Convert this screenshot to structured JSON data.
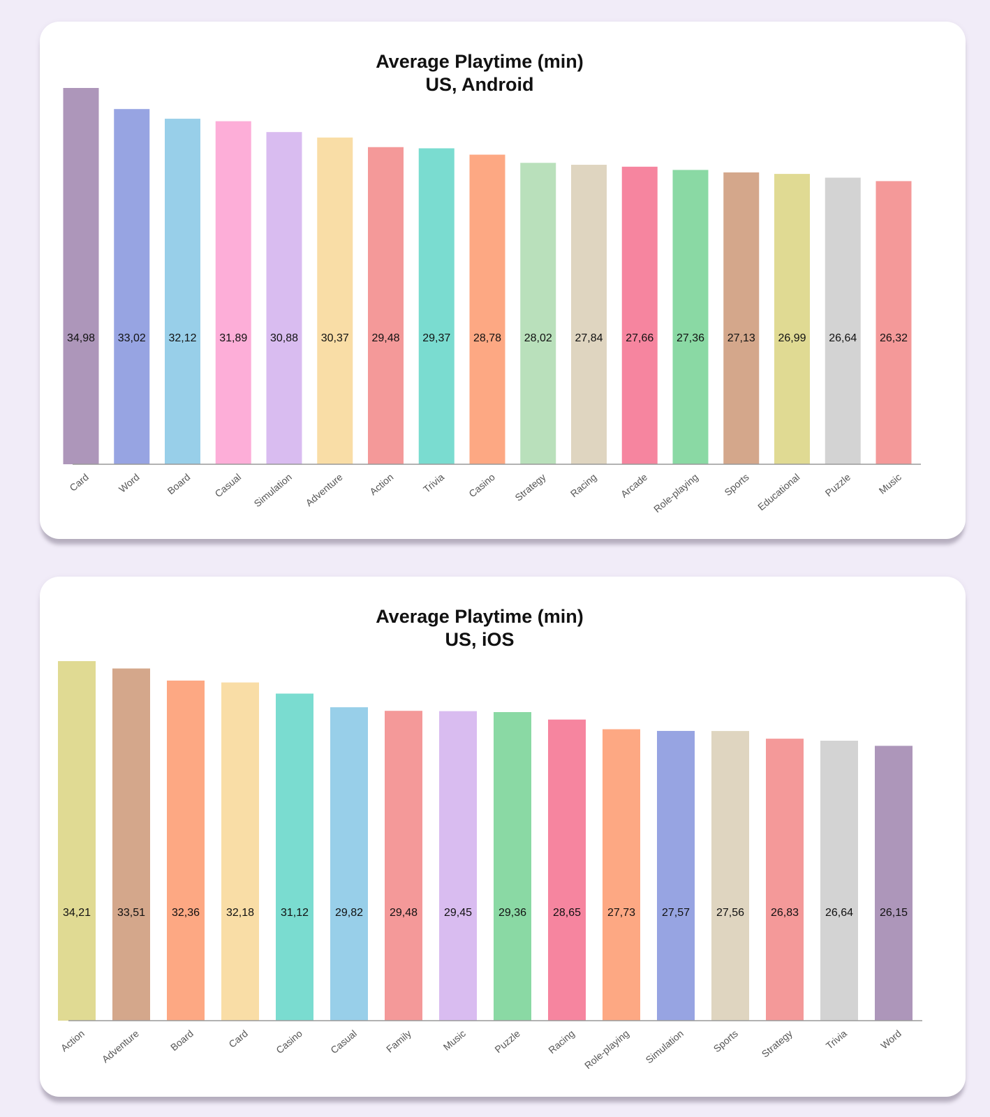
{
  "charts": [
    {
      "id": "android",
      "chart_data": {
        "type": "bar",
        "title": "Average Playtime (min)",
        "subtitle": "US, Android",
        "xlabel": "",
        "ylabel": "",
        "ylim": [
          0,
          34.98
        ],
        "categories": [
          "Card",
          "Word",
          "Board",
          "Casual",
          "Simulation",
          "Adventure",
          "Action",
          "Trivia",
          "Casino",
          "Strategy",
          "Racing",
          "Arcade",
          "Role-playing",
          "Sports",
          "Educational",
          "Puzzle",
          "Music"
        ],
        "values": [
          34.98,
          33.02,
          32.12,
          31.89,
          30.88,
          30.37,
          29.48,
          29.37,
          28.78,
          28.02,
          27.84,
          27.66,
          27.36,
          27.13,
          26.99,
          26.64,
          26.32
        ],
        "value_labels": [
          "34,98",
          "33,02",
          "32,12",
          "31,89",
          "30,88",
          "30,37",
          "29,48",
          "29,37",
          "28,78",
          "28,02",
          "27,84",
          "27,66",
          "27,36",
          "27,13",
          "26,99",
          "26,64",
          "26,32"
        ],
        "colors": [
          "#ad96ba",
          "#97a4e2",
          "#98cfe9",
          "#fdaed8",
          "#d9bcf0",
          "#f9dda6",
          "#f49999",
          "#7adcd0",
          "#fda883",
          "#b9e0bb",
          "#dfd5c0",
          "#f6859f",
          "#8ad9a4",
          "#d4a78b",
          "#e0da93",
          "#d3d3d3",
          "#f49999"
        ]
      }
    },
    {
      "id": "ios",
      "chart_data": {
        "type": "bar",
        "title": "Average Playtime (min)",
        "subtitle": "US, iOS",
        "xlabel": "",
        "ylabel": "",
        "ylim": [
          0,
          34.21
        ],
        "categories": [
          "Action",
          "Adventure",
          "Board",
          "Card",
          "Casino",
          "Casual",
          "Family",
          "Music",
          "Puzzle",
          "Racing",
          "Role-playing",
          "Simulation",
          "Sports",
          "Strategy",
          "Trivia",
          "Word"
        ],
        "values": [
          34.21,
          33.51,
          32.36,
          32.18,
          31.12,
          29.82,
          29.48,
          29.45,
          29.36,
          28.65,
          27.73,
          27.57,
          27.56,
          26.83,
          26.64,
          26.15
        ],
        "value_labels": [
          "34,21",
          "33,51",
          "32,36",
          "32,18",
          "31,12",
          "29,82",
          "29,48",
          "29,45",
          "29,36",
          "28,65",
          "27,73",
          "27,57",
          "27,56",
          "26,83",
          "26,64",
          "26,15"
        ],
        "colors": [
          "#e0da93",
          "#d4a78b",
          "#fda883",
          "#f9dda6",
          "#7adcd0",
          "#98cfe9",
          "#f49999",
          "#d9bcf0",
          "#8ad9a4",
          "#f6859f",
          "#fda883",
          "#97a4e2",
          "#dfd5c0",
          "#f49999",
          "#d3d3d3",
          "#ad96ba"
        ]
      }
    }
  ]
}
